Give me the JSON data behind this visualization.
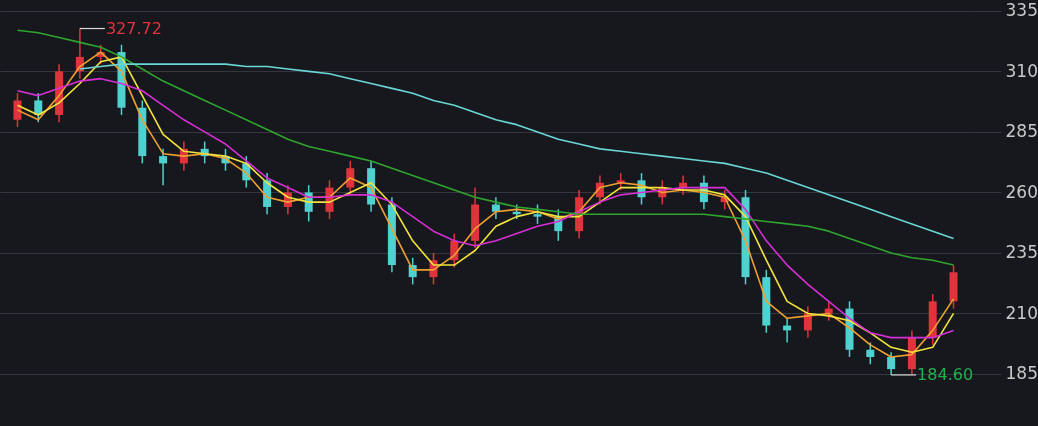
{
  "chart_data": {
    "type": "candlestick",
    "categories": [
      null,
      null,
      null,
      null,
      null,
      null,
      null,
      null,
      null,
      null,
      null,
      null,
      null,
      null,
      null,
      null,
      null,
      null,
      null,
      null,
      null,
      null,
      null,
      null,
      null,
      null,
      null,
      null,
      null,
      null,
      null,
      null,
      null,
      null,
      null,
      null,
      null,
      null,
      null,
      null,
      null,
      null,
      null,
      null,
      null,
      null
    ],
    "ohlc": [
      [
        290,
        301,
        287,
        298
      ],
      [
        298,
        301,
        289,
        292
      ],
      [
        292,
        313,
        289,
        310
      ],
      [
        310,
        327.72,
        307,
        316
      ],
      [
        316,
        321,
        313,
        318
      ],
      [
        318,
        321,
        292,
        295
      ],
      [
        295,
        298,
        272,
        275
      ],
      [
        275,
        278,
        263,
        272
      ],
      [
        272,
        281,
        269,
        278
      ],
      [
        278,
        281,
        272,
        275
      ],
      [
        275,
        278,
        269,
        272
      ],
      [
        272,
        275,
        262,
        265
      ],
      [
        265,
        268,
        251,
        254
      ],
      [
        254,
        263,
        251,
        260
      ],
      [
        260,
        263,
        248,
        252
      ],
      [
        252,
        265,
        249,
        262
      ],
      [
        262,
        273,
        259,
        270
      ],
      [
        270,
        273,
        252,
        255
      ],
      [
        255,
        258,
        227,
        230
      ],
      [
        230,
        233,
        222,
        225
      ],
      [
        225,
        235,
        222,
        232
      ],
      [
        232,
        243,
        229,
        240
      ],
      [
        240,
        262,
        237,
        255
      ],
      [
        255,
        258,
        249,
        252
      ],
      [
        252,
        255,
        249,
        251
      ],
      [
        251,
        255,
        247,
        250
      ],
      [
        250,
        253,
        240,
        244
      ],
      [
        244,
        261,
        241,
        258
      ],
      [
        258,
        267,
        255,
        264
      ],
      [
        264,
        268,
        261,
        265
      ],
      [
        265,
        268,
        255,
        258
      ],
      [
        258,
        265,
        255,
        262
      ],
      [
        262,
        267,
        259,
        264
      ],
      [
        264,
        267,
        253,
        256
      ],
      [
        256,
        261,
        253,
        258
      ],
      [
        258,
        261,
        222,
        225
      ],
      [
        225,
        228,
        202,
        205
      ],
      [
        205,
        208,
        198,
        203
      ],
      [
        203,
        213,
        200,
        210
      ],
      [
        210,
        215,
        207,
        212
      ],
      [
        212,
        215,
        192,
        195
      ],
      [
        195,
        198,
        189,
        192
      ],
      [
        192,
        194,
        184.6,
        187
      ],
      [
        187,
        203,
        185,
        200
      ],
      [
        200,
        218,
        197,
        215
      ],
      [
        215,
        230,
        212,
        227
      ]
    ],
    "colors": [
      "#e0343c",
      "#4fd1d0",
      "#e0343c",
      "#e0343c",
      "#e0343c",
      "#4fd1d0",
      "#4fd1d0",
      "#4fd1d0",
      "#e0343c",
      "#4fd1d0",
      "#4fd1d0",
      "#4fd1d0",
      "#4fd1d0",
      "#e0343c",
      "#4fd1d0",
      "#e0343c",
      "#e0343c",
      "#4fd1d0",
      "#4fd1d0",
      "#4fd1d0",
      "#e0343c",
      "#e0343c",
      "#e0343c",
      "#4fd1d0",
      "#4fd1d0",
      "#4fd1d0",
      "#4fd1d0",
      "#e0343c",
      "#e0343c",
      "#e0343c",
      "#4fd1d0",
      "#e0343c",
      "#e0343c",
      "#4fd1d0",
      "#e0343c",
      "#4fd1d0",
      "#4fd1d0",
      "#4fd1d0",
      "#e0343c",
      "#e0343c",
      "#4fd1d0",
      "#4fd1d0",
      "#4fd1d0",
      "#e0343c",
      "#e0343c",
      "#e0343c"
    ],
    "series": [
      {
        "type": "line",
        "color": "#f0a030",
        "values": [
          294,
          290,
          300,
          312,
          318,
          310,
          290,
          276,
          275,
          276,
          274,
          268,
          258,
          256,
          258,
          258,
          266,
          262,
          245,
          228,
          228,
          234,
          245,
          252,
          253,
          252,
          249,
          252,
          262,
          264,
          263,
          260,
          261,
          260,
          258,
          240,
          215,
          208,
          209,
          210,
          204,
          197,
          192,
          193,
          203,
          216
        ]
      },
      {
        "type": "line",
        "color": "#f2e43c",
        "values": [
          296,
          292,
          297,
          305,
          314,
          316,
          300,
          284,
          277,
          276,
          275,
          272,
          264,
          258,
          256,
          256,
          260,
          264,
          255,
          240,
          230,
          230,
          236,
          246,
          250,
          252,
          250,
          250,
          256,
          262,
          262,
          262,
          261,
          261,
          259,
          250,
          232,
          215,
          210,
          209,
          207,
          202,
          196,
          194,
          196,
          210
        ]
      },
      {
        "type": "line",
        "color": "#d62fd6",
        "values": [
          302,
          300,
          303,
          306,
          307,
          305,
          302,
          296,
          290,
          285,
          280,
          273,
          266,
          262,
          258,
          258,
          259,
          259,
          256,
          250,
          244,
          240,
          238,
          240,
          243,
          246,
          248,
          252,
          256,
          259,
          260,
          261,
          262,
          262,
          262,
          253,
          240,
          230,
          222,
          215,
          208,
          202,
          200,
          200,
          200,
          203
        ]
      },
      {
        "type": "line",
        "color": "#2fa52f",
        "values": [
          327,
          326,
          324,
          322,
          320,
          316,
          311,
          306,
          302,
          298,
          294,
          290,
          286,
          282,
          279,
          277,
          275,
          273,
          270,
          267,
          264,
          261,
          258,
          256,
          254,
          253,
          252,
          251,
          251,
          251,
          251,
          251,
          251,
          251,
          250,
          249,
          248,
          247,
          246,
          244,
          241,
          238,
          235,
          233,
          232,
          230
        ]
      },
      {
        "type": "line",
        "color": "#6ad6d6",
        "values": [
          null,
          null,
          null,
          311,
          312,
          313,
          313,
          313,
          313,
          313,
          313,
          312,
          312,
          311,
          310,
          309,
          307,
          305,
          303,
          301,
          298,
          296,
          293,
          290,
          288,
          285,
          282,
          280,
          278,
          277,
          276,
          275,
          274,
          273,
          272,
          270,
          268,
          265,
          262,
          259,
          256,
          253,
          250,
          247,
          244,
          241
        ]
      }
    ],
    "ylim": [
      163.5,
      339.5
    ],
    "yticks": [
      185,
      210,
      235,
      260,
      285,
      310,
      335
    ],
    "grid": "y",
    "tick_labels": "y",
    "annotations": [
      "327.72",
      "184.60"
    ]
  }
}
